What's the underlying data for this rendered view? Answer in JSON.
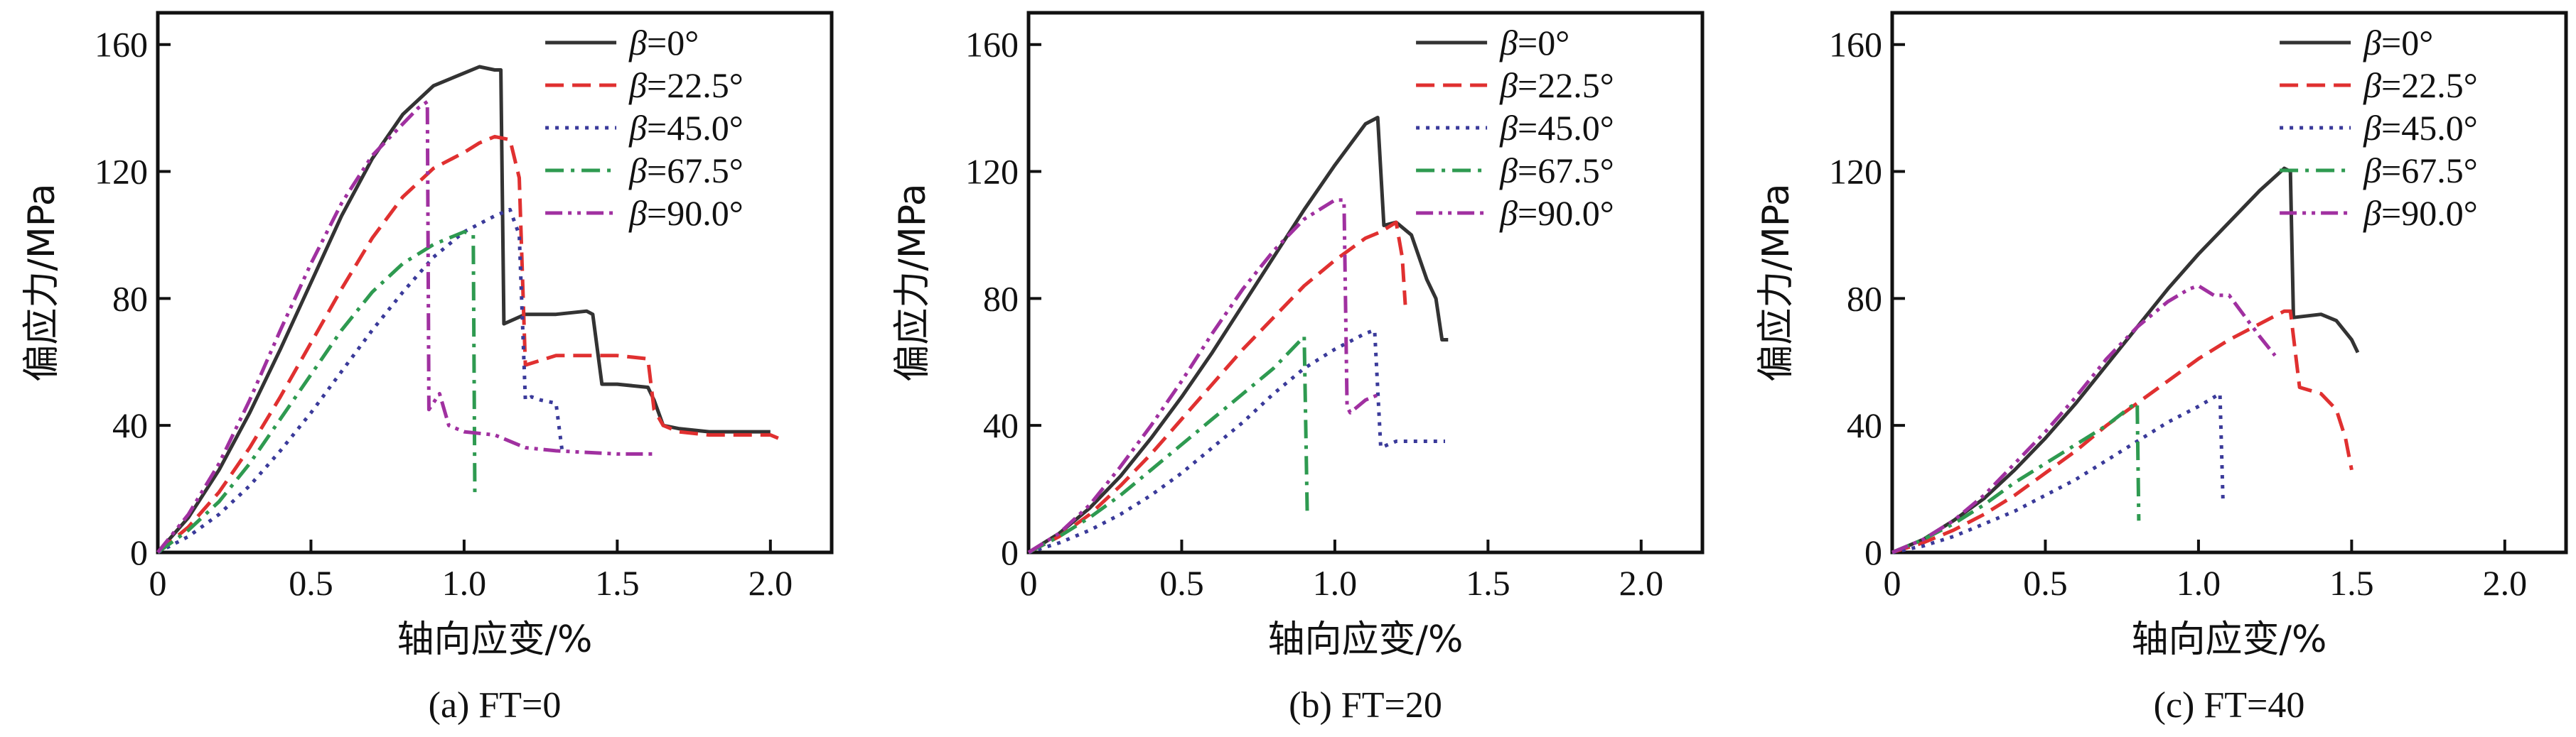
{
  "chart_data": [
    {
      "type": "line",
      "caption": "(a) FT=0",
      "xlabel": "轴向应变/%",
      "ylabel": "偏应力/MPa",
      "xlim": [
        0,
        2.2
      ],
      "ylim": [
        0,
        170
      ],
      "xticks": [
        0,
        0.5,
        1.0,
        1.5,
        2.0
      ],
      "xtick_labels": [
        "0",
        "0.5",
        "1.0",
        "1.5",
        "2.0"
      ],
      "yticks": [
        0,
        40,
        80,
        120,
        160
      ],
      "ytick_labels": [
        "0",
        "40",
        "80",
        "120",
        "160"
      ],
      "grid": false,
      "legend_position": "top-right",
      "series": [
        {
          "name": "β=0°",
          "color": "#333333",
          "dash": "solid",
          "x": [
            0,
            0.1,
            0.2,
            0.3,
            0.4,
            0.5,
            0.6,
            0.7,
            0.8,
            0.9,
            1.0,
            1.05,
            1.1,
            1.12,
            1.13,
            1.2,
            1.3,
            1.4,
            1.42,
            1.45,
            1.5,
            1.6,
            1.62,
            1.65,
            1.7,
            1.8,
            2.0
          ],
          "y": [
            0,
            11,
            26,
            44,
            64,
            85,
            106,
            124,
            138,
            147,
            151,
            153,
            152,
            152,
            72,
            75,
            75,
            76,
            75,
            53,
            53,
            52,
            48,
            40,
            39,
            38,
            38
          ]
        },
        {
          "name": "β=22.5°",
          "color": "#e03030",
          "dash": "dashed",
          "x": [
            0,
            0.1,
            0.2,
            0.3,
            0.4,
            0.5,
            0.6,
            0.7,
            0.8,
            0.9,
            1.0,
            1.05,
            1.1,
            1.15,
            1.18,
            1.2,
            1.3,
            1.4,
            1.5,
            1.6,
            1.62,
            1.65,
            1.7,
            1.8,
            1.9,
            2.0,
            2.05
          ],
          "y": [
            0,
            8,
            19,
            33,
            49,
            66,
            83,
            99,
            112,
            121,
            126,
            129,
            131,
            130,
            118,
            59,
            62,
            62,
            62,
            61,
            45,
            40,
            38,
            37,
            37,
            37,
            35
          ]
        },
        {
          "name": "β=45.0°",
          "color": "#3a3a9a",
          "dash": "dotted",
          "x": [
            0,
            0.1,
            0.2,
            0.3,
            0.4,
            0.5,
            0.6,
            0.7,
            0.8,
            0.9,
            1.0,
            1.1,
            1.15,
            1.18,
            1.2,
            1.22,
            1.25,
            1.3,
            1.32
          ],
          "y": [
            0,
            5,
            12,
            21,
            32,
            44,
            57,
            70,
            82,
            93,
            101,
            106,
            108,
            100,
            48,
            49,
            48,
            47,
            32
          ]
        },
        {
          "name": "β=67.5°",
          "color": "#2e9a50",
          "dash": "dashdot",
          "x": [
            0,
            0.1,
            0.2,
            0.3,
            0.4,
            0.5,
            0.6,
            0.7,
            0.8,
            0.9,
            0.95,
            1.0,
            1.03,
            1.035
          ],
          "y": [
            0,
            7,
            16,
            28,
            42,
            56,
            70,
            82,
            91,
            97,
            99,
            101,
            100,
            19
          ]
        },
        {
          "name": "β=90.0°",
          "color": "#a030a0",
          "dash": "dashdotdot",
          "x": [
            0,
            0.1,
            0.2,
            0.3,
            0.4,
            0.5,
            0.6,
            0.7,
            0.8,
            0.85,
            0.88,
            0.885,
            0.92,
            0.95,
            1.0,
            1.1,
            1.2,
            1.3,
            1.5,
            1.63
          ],
          "y": [
            0,
            12,
            28,
            48,
            70,
            91,
            110,
            125,
            135,
            140,
            142,
            45,
            50,
            40,
            38,
            37,
            33,
            32,
            31,
            31
          ]
        }
      ]
    },
    {
      "type": "line",
      "caption": "(b) FT=20",
      "xlabel": "轴向应变/%",
      "ylabel": "偏应力/MPa",
      "xlim": [
        0,
        2.2
      ],
      "ylim": [
        0,
        170
      ],
      "xticks": [
        0,
        0.5,
        1.0,
        1.5,
        2.0
      ],
      "xtick_labels": [
        "0",
        "0.5",
        "1.0",
        "1.5",
        "2.0"
      ],
      "yticks": [
        0,
        40,
        80,
        120,
        160
      ],
      "ytick_labels": [
        "0",
        "40",
        "80",
        "120",
        "160"
      ],
      "grid": false,
      "legend_position": "top-right",
      "series": [
        {
          "name": "β=0°",
          "color": "#333333",
          "dash": "solid",
          "x": [
            0,
            0.1,
            0.2,
            0.3,
            0.4,
            0.5,
            0.6,
            0.7,
            0.8,
            0.9,
            1.0,
            1.1,
            1.14,
            1.16,
            1.2,
            1.25,
            1.3,
            1.33,
            1.35,
            1.37
          ],
          "y": [
            0,
            6,
            14,
            24,
            36,
            49,
            63,
            78,
            93,
            108,
            122,
            135,
            137,
            103,
            104,
            100,
            86,
            80,
            67,
            67
          ]
        },
        {
          "name": "β=22.5°",
          "color": "#e03030",
          "dash": "dashed",
          "x": [
            0,
            0.1,
            0.2,
            0.3,
            0.4,
            0.5,
            0.6,
            0.7,
            0.8,
            0.9,
            1.0,
            1.1,
            1.15,
            1.2,
            1.22,
            1.23
          ],
          "y": [
            0,
            5,
            12,
            21,
            31,
            42,
            53,
            64,
            74,
            84,
            92,
            99,
            101,
            104,
            93,
            78
          ]
        },
        {
          "name": "β=45.0°",
          "color": "#3a3a9a",
          "dash": "dotted",
          "x": [
            0,
            0.1,
            0.2,
            0.3,
            0.4,
            0.5,
            0.6,
            0.7,
            0.8,
            0.9,
            1.0,
            1.1,
            1.13,
            1.15,
            1.2,
            1.3,
            1.36
          ],
          "y": [
            0,
            3,
            7,
            12,
            18,
            25,
            33,
            41,
            50,
            58,
            64,
            69,
            70,
            33,
            35,
            35,
            35
          ]
        },
        {
          "name": "β=67.5°",
          "color": "#2e9a50",
          "dash": "dashdot",
          "x": [
            0,
            0.1,
            0.2,
            0.3,
            0.4,
            0.5,
            0.6,
            0.7,
            0.8,
            0.88,
            0.9,
            0.91
          ],
          "y": [
            0,
            5,
            11,
            18,
            26,
            34,
            42,
            50,
            58,
            66,
            68,
            12
          ]
        },
        {
          "name": "β=90.0°",
          "color": "#a030a0",
          "dash": "dashdotdot",
          "x": [
            0,
            0.1,
            0.2,
            0.3,
            0.4,
            0.5,
            0.6,
            0.7,
            0.8,
            0.9,
            1.0,
            1.03,
            1.04,
            1.05,
            1.1,
            1.15
          ],
          "y": [
            0,
            6,
            15,
            27,
            40,
            54,
            69,
            83,
            95,
            105,
            111,
            111,
            46,
            44,
            48,
            50
          ]
        }
      ]
    },
    {
      "type": "line",
      "caption": "(c) FT=40",
      "xlabel": "轴向应变/%",
      "ylabel": "偏应力/MPa",
      "xlim": [
        0,
        2.2
      ],
      "ylim": [
        0,
        170
      ],
      "xticks": [
        0,
        0.5,
        1.0,
        1.5,
        2.0
      ],
      "xtick_labels": [
        "0",
        "0.5",
        "1.0",
        "1.5",
        "2.0"
      ],
      "yticks": [
        0,
        40,
        80,
        120,
        160
      ],
      "ytick_labels": [
        "0",
        "40",
        "80",
        "120",
        "160"
      ],
      "grid": false,
      "legend_position": "top-right",
      "series": [
        {
          "name": "β=0°",
          "color": "#333333",
          "dash": "solid",
          "x": [
            0,
            0.1,
            0.2,
            0.3,
            0.4,
            0.5,
            0.6,
            0.7,
            0.8,
            0.9,
            1.0,
            1.1,
            1.2,
            1.28,
            1.3,
            1.31,
            1.4,
            1.45,
            1.5,
            1.52
          ],
          "y": [
            0,
            4,
            10,
            17,
            26,
            36,
            47,
            59,
            71,
            83,
            94,
            104,
            114,
            121,
            120,
            74,
            75,
            73,
            67,
            63
          ]
        },
        {
          "name": "β=22.5°",
          "color": "#e03030",
          "dash": "dashed",
          "x": [
            0,
            0.1,
            0.2,
            0.3,
            0.4,
            0.5,
            0.6,
            0.7,
            0.8,
            0.9,
            1.0,
            1.1,
            1.2,
            1.28,
            1.3,
            1.33,
            1.4,
            1.45,
            1.48,
            1.5
          ],
          "y": [
            0,
            3,
            7,
            12,
            18,
            25,
            32,
            40,
            47,
            54,
            61,
            67,
            72,
            76,
            76,
            52,
            50,
            45,
            36,
            26
          ]
        },
        {
          "name": "β=45.0°",
          "color": "#3a3a9a",
          "dash": "dotted",
          "x": [
            0,
            0.1,
            0.2,
            0.3,
            0.4,
            0.5,
            0.6,
            0.7,
            0.8,
            0.9,
            1.0,
            1.07,
            1.08
          ],
          "y": [
            0,
            2,
            5,
            9,
            13,
            18,
            23,
            29,
            35,
            41,
            46,
            50,
            16
          ]
        },
        {
          "name": "β=67.5°",
          "color": "#2e9a50",
          "dash": "dashdot",
          "x": [
            0,
            0.1,
            0.2,
            0.3,
            0.4,
            0.5,
            0.6,
            0.7,
            0.78,
            0.8,
            0.805
          ],
          "y": [
            0,
            4,
            9,
            15,
            22,
            28,
            34,
            40,
            46,
            47,
            10
          ]
        },
        {
          "name": "β=90.0°",
          "color": "#a030a0",
          "dash": "dashdotdot",
          "x": [
            0,
            0.1,
            0.2,
            0.3,
            0.4,
            0.5,
            0.6,
            0.7,
            0.8,
            0.9,
            0.97,
            1.0,
            1.05,
            1.1,
            1.2,
            1.25
          ],
          "y": [
            0,
            4,
            10,
            18,
            28,
            38,
            49,
            61,
            71,
            79,
            83,
            84,
            81,
            81,
            68,
            62
          ]
        }
      ]
    }
  ]
}
